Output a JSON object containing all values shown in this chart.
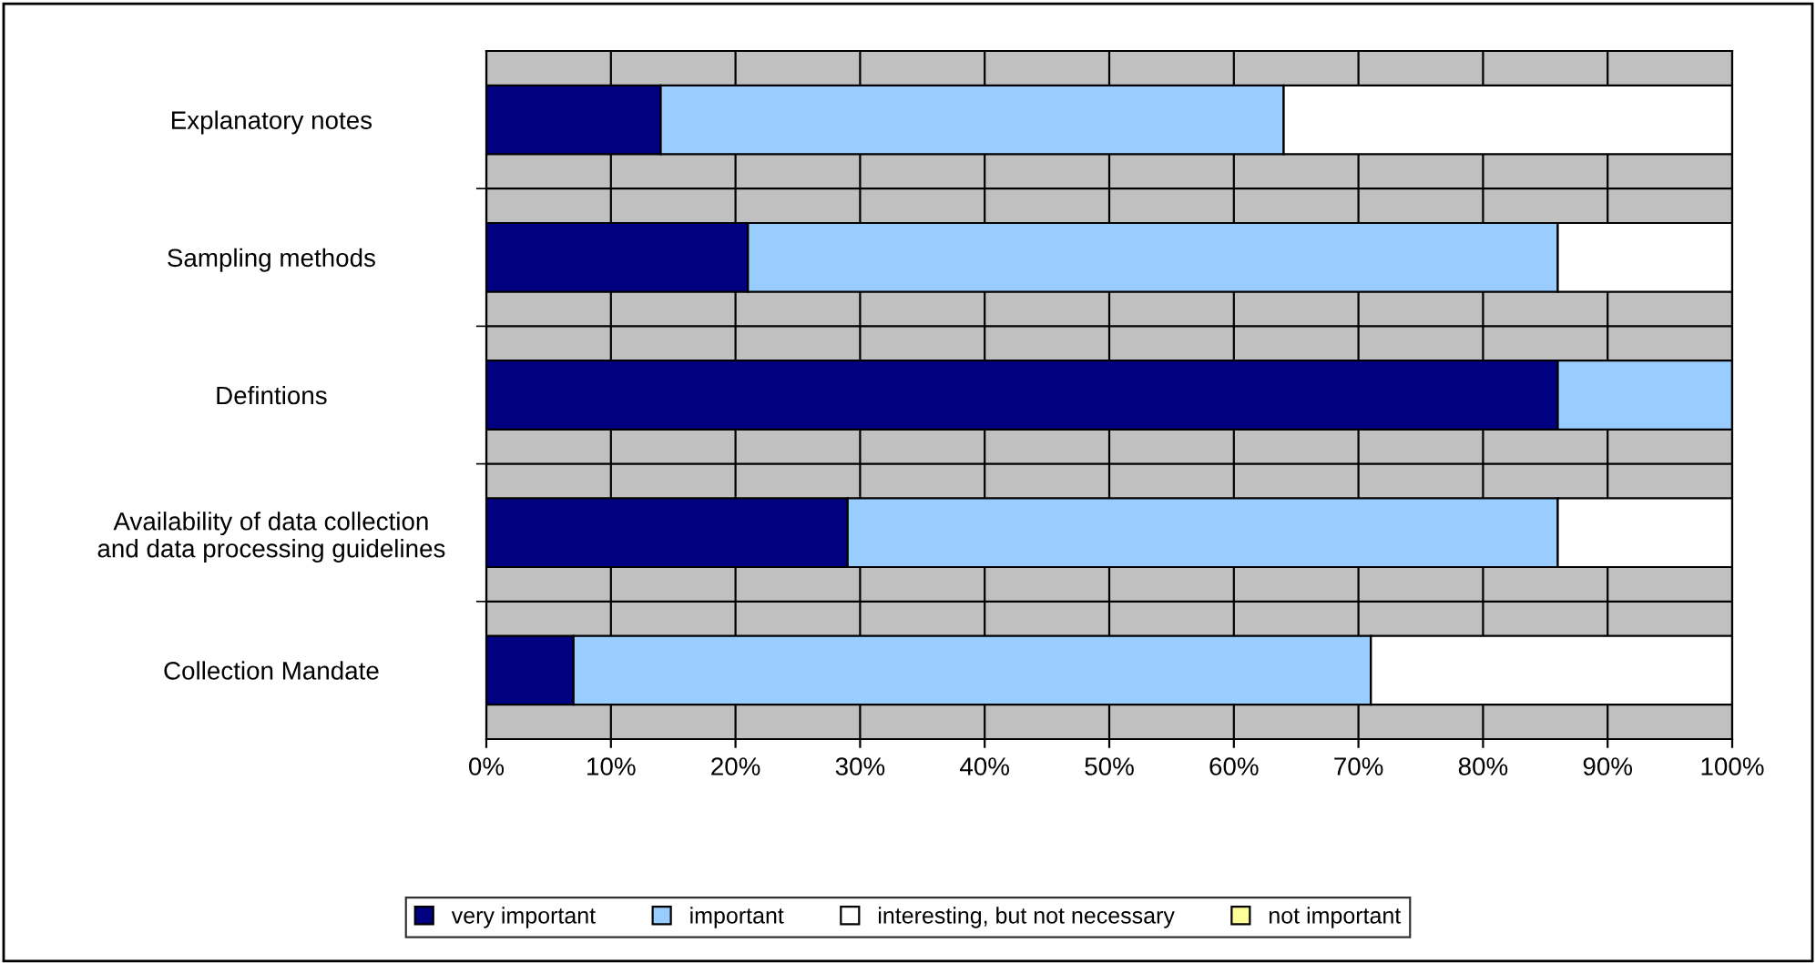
{
  "chart_data": {
    "type": "bar",
    "orientation": "horizontal",
    "stacked": true,
    "categories": [
      "Explanatory notes",
      "Sampling methods",
      "Defintions",
      "Availability of data collection\nand data processing guidelines",
      "Collection Mandate"
    ],
    "series": [
      {
        "name": "very important",
        "color": "#000080",
        "values": [
          14,
          21,
          86,
          29,
          7
        ]
      },
      {
        "name": "important",
        "color": "#99ccff",
        "values": [
          50,
          65,
          14,
          57,
          64
        ]
      },
      {
        "name": "interesting, but not necessary",
        "color": "#ffffff",
        "values": [
          36,
          14,
          0,
          14,
          29
        ]
      },
      {
        "name": "not important",
        "color": "#ffff99",
        "values": [
          0,
          0,
          0,
          0,
          0
        ]
      }
    ],
    "xlim": [
      0,
      100
    ],
    "xticks": [
      {
        "value": 0,
        "label": "0%"
      },
      {
        "value": 10,
        "label": "10%"
      },
      {
        "value": 20,
        "label": "20%"
      },
      {
        "value": 30,
        "label": "30%"
      },
      {
        "value": 40,
        "label": "40%"
      },
      {
        "value": 50,
        "label": "50%"
      },
      {
        "value": 60,
        "label": "60%"
      },
      {
        "value": 70,
        "label": "70%"
      },
      {
        "value": 80,
        "label": "80%"
      },
      {
        "value": 90,
        "label": "90%"
      },
      {
        "value": 100,
        "label": "100%"
      }
    ],
    "grid": true,
    "legend": "bottom"
  }
}
